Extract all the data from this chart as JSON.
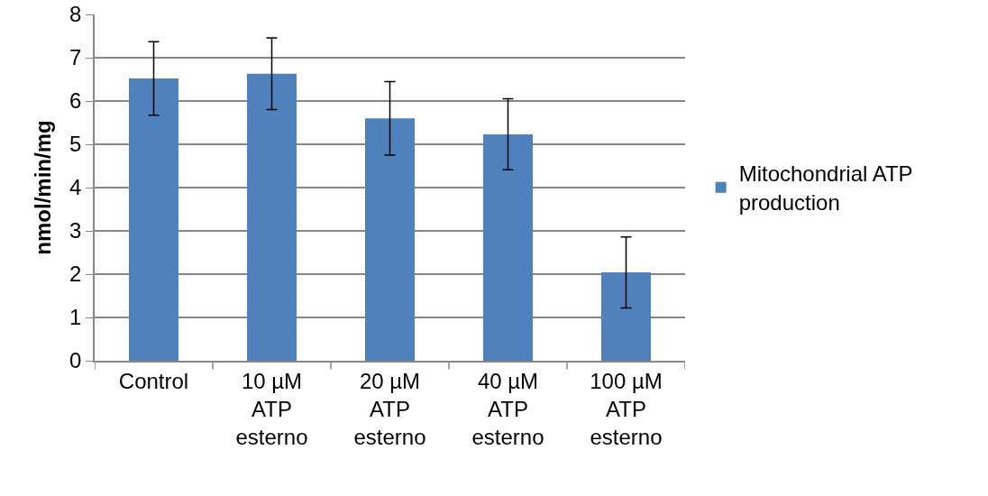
{
  "chart_data": {
    "type": "bar",
    "ylabel": "nmol/min/mg",
    "categories": [
      "Control",
      "10 µM ATP esterno",
      "20 µM ATP esterno",
      "40 µM ATP esterno",
      "100 µM ATP esterno"
    ],
    "series": [
      {
        "name": "Mitochondrial ATP production",
        "color": "#4f81bd",
        "values": [
          6.52,
          6.63,
          5.6,
          5.23,
          2.04
        ],
        "errors": [
          0.85,
          0.83,
          0.85,
          0.82,
          0.82
        ]
      }
    ],
    "ylim": [
      0,
      8
    ],
    "yticks": [
      0,
      1,
      2,
      3,
      4,
      5,
      6,
      7,
      8
    ],
    "grid": "y",
    "legend": "right"
  }
}
